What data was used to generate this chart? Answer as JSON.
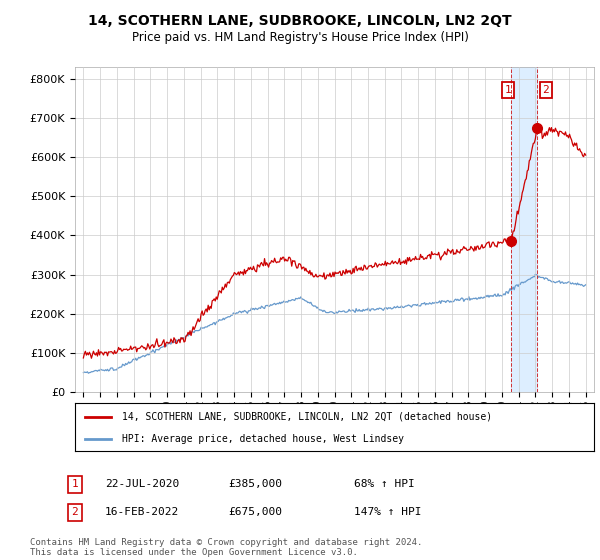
{
  "title": "14, SCOTHERN LANE, SUDBROOKE, LINCOLN, LN2 2QT",
  "subtitle": "Price paid vs. HM Land Registry's House Price Index (HPI)",
  "legend_line1": "14, SCOTHERN LANE, SUDBROOKE, LINCOLN, LN2 2QT (detached house)",
  "legend_line2": "HPI: Average price, detached house, West Lindsey",
  "annotation1_date": "22-JUL-2020",
  "annotation1_price": "£385,000",
  "annotation1_hpi": "68% ↑ HPI",
  "annotation2_date": "16-FEB-2022",
  "annotation2_price": "£675,000",
  "annotation2_hpi": "147% ↑ HPI",
  "footnote": "Contains HM Land Registry data © Crown copyright and database right 2024.\nThis data is licensed under the Open Government Licence v3.0.",
  "sale1_x": 2020.55,
  "sale1_y": 385000,
  "sale2_x": 2022.12,
  "sale2_y": 675000,
  "red_line_color": "#cc0000",
  "blue_line_color": "#6699cc",
  "shade_color": "#ddeeff",
  "background_color": "#ffffff",
  "grid_color": "#cccccc",
  "ylim": [
    0,
    830000
  ],
  "xlim": [
    1994.5,
    2025.5
  ]
}
